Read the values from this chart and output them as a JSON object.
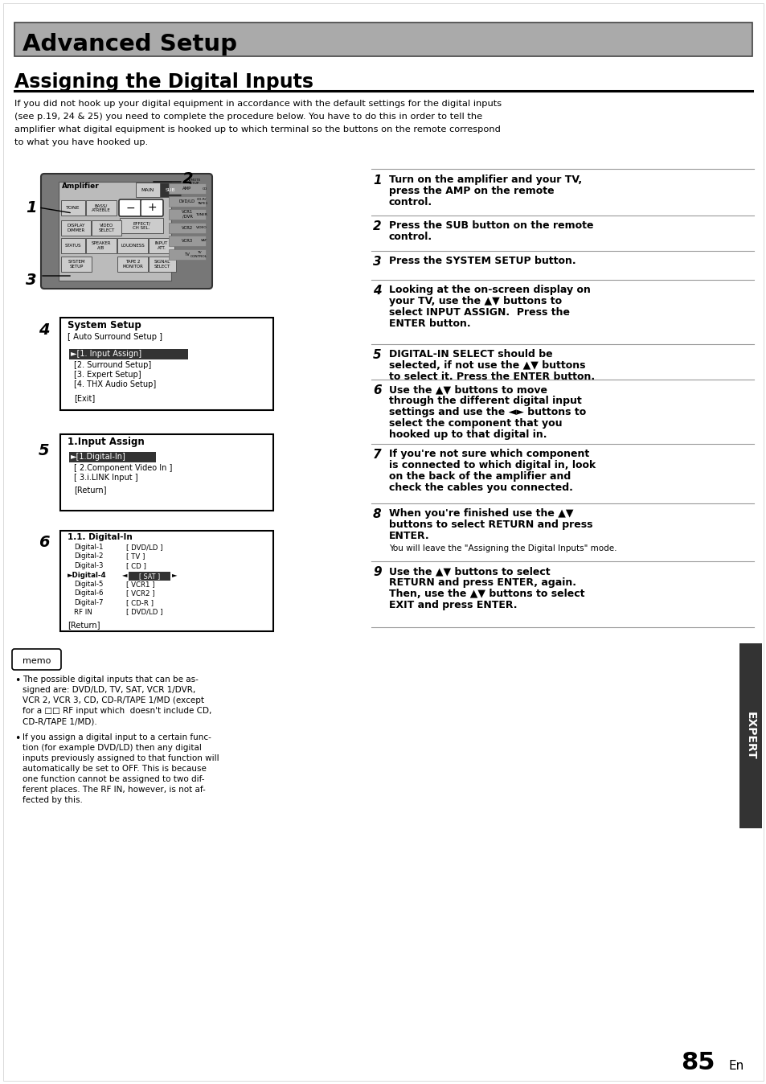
{
  "title": "Advanced Setup",
  "subtitle": "Assigning the Digital Inputs",
  "intro_text": "If you did not hook up your digital equipment in accordance with the default settings for the digital inputs\n(see p.19, 24 & 25) you need to complete the procedure below. You have to do this in order to tell the\namplifier what digital equipment is hooked up to which terminal so the buttons on the remote correspond\nto what you have hooked up.",
  "steps_right": [
    {
      "num": "1",
      "bold": "Turn on the amplifier and your TV,\npress the AMP on the remote\ncontrol."
    },
    {
      "num": "2",
      "bold": "Press the SUB button on the remote\ncontrol."
    },
    {
      "num": "3",
      "bold": "Press the SYSTEM SETUP button."
    },
    {
      "num": "4",
      "bold": "Looking at the on-screen display on\nyour TV, use the ▲▼ buttons to\nselect INPUT ASSIGN.  Press the\nENTER button."
    },
    {
      "num": "5",
      "bold": "DIGITAL-IN SELECT should be\nselected, if not use the ▲▼ buttons\nto select it. Press the ENTER button."
    },
    {
      "num": "6",
      "bold": "Use the ▲▼ buttons to move\nthrough the different digital input\nsettings and use the ◄► buttons to\nselect the component that you\nhooked up to that digital in."
    },
    {
      "num": "7",
      "bold": "If you're not sure which component\nis connected to which digital in, look\non the back of the amplifier and\ncheck the cables you connected."
    },
    {
      "num": "8",
      "bold": "When you're finished use the ▲▼\nbuttons to select RETURN and press\nENTER.",
      "extra": "You will leave the \"Assigning the Digital Inputs\" mode."
    },
    {
      "num": "9",
      "bold": "Use the ▲▼ buttons to select\nRETURN and press ENTER, again.\nThen, use the ▲▼ buttons to select\nEXIT and press ENTER."
    }
  ],
  "memo_bullets": [
    "The possible digital inputs that can be assigned are: DVD/LD, TV, SAT, VCR 1/DVR, VCR 2, VCR 3, CD, CD-R/TAPE 1/MD (except for a □□ RF input which  doesn't include CD, CD-R/TAPE 1/MD).",
    "If you assign a digital input to a certain function (for example DVD/LD) then any digital inputs previously assigned to that function will automatically be set to OFF. This is because one function cannot be assigned to two different places. The RF IN, however, is not affected by this."
  ],
  "page_num": "85",
  "page_en": "En",
  "expert_label": "EXPERT",
  "bg_color": "#ffffff",
  "header_bg": "#aaaaaa",
  "header_text_color": "#000000"
}
